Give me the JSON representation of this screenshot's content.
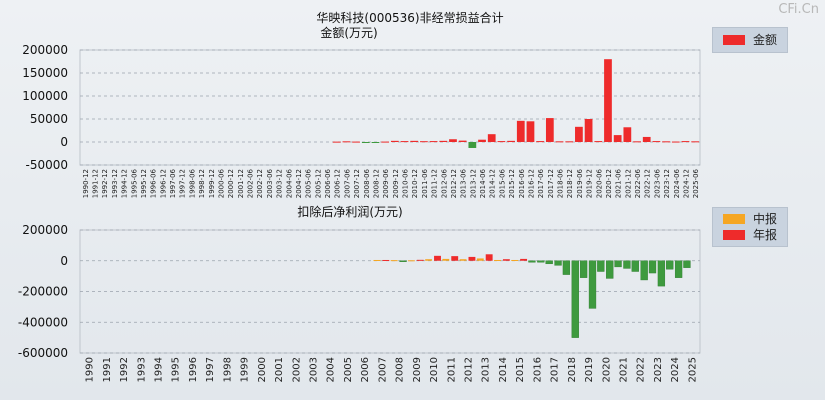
{
  "watermark": "CFi.Cn",
  "colors": {
    "red": "#ee2b2b",
    "green": "#3e9a3e",
    "orange": "#f5a623",
    "grid": "#9aa3ad"
  },
  "chart_data": [
    {
      "type": "bar",
      "title": "华映科技(000536)非经常损益合计",
      "subtitle": "金额(万元)",
      "legend": [
        {
          "name": "金额",
          "color": "#ee2b2b"
        }
      ],
      "ylim": [
        -50000,
        200000
      ],
      "yticks": [
        200000,
        150000,
        100000,
        50000,
        0,
        -50000
      ],
      "categories": [
        "1990-12",
        "1991-12",
        "1992-12",
        "1993-12",
        "1994-12",
        "1995-06",
        "1995-12",
        "1996-06",
        "1996-12",
        "1997-06",
        "1997-12",
        "1998-06",
        "1998-12",
        "1999-12",
        "2000-06",
        "2000-12",
        "2001-12",
        "2002-06",
        "2002-12",
        "2003-06",
        "2003-12",
        "2004-06",
        "2004-12",
        "2005-06",
        "2005-12",
        "2006-06",
        "2006-12",
        "2007-06",
        "2007-12",
        "2008-06",
        "2008-12",
        "2009-06",
        "2009-12",
        "2010-06",
        "2010-12",
        "2011-06",
        "2011-12",
        "2012-06",
        "2012-12",
        "2013-06",
        "2013-12",
        "2014-06",
        "2014-12",
        "2015-06",
        "2015-12",
        "2016-06",
        "2016-12",
        "2017-06",
        "2017-12",
        "2018-06",
        "2018-12",
        "2019-06",
        "2019-12",
        "2020-06",
        "2020-12",
        "2021-06",
        "2021-12",
        "2022-06",
        "2022-12",
        "2023-06",
        "2023-12",
        "2024-06",
        "2024-12",
        "2025-06"
      ],
      "values": [
        0,
        0,
        0,
        0,
        0,
        0,
        0,
        0,
        0,
        0,
        0,
        0,
        0,
        0,
        0,
        0,
        0,
        0,
        0,
        0,
        0,
        0,
        0,
        0,
        0,
        0,
        800,
        1500,
        900,
        -1500,
        -1200,
        900,
        2500,
        2000,
        2500,
        1800,
        2000,
        2500,
        6000,
        3000,
        -13000,
        5000,
        17000,
        2000,
        2500,
        46000,
        45000,
        2000,
        52000,
        1500,
        1500,
        33000,
        50000,
        2000,
        180000,
        15000,
        32000,
        1500,
        11000,
        2000,
        1500,
        1000,
        2000,
        1500
      ]
    },
    {
      "type": "bar",
      "title": "扣除后净利润(万元)",
      "legend": [
        {
          "name": "中报",
          "color": "#f5a623"
        },
        {
          "name": "年报",
          "color": "#ee2b2b"
        }
      ],
      "ylim": [
        -600000,
        200000
      ],
      "yticks": [
        200000,
        0,
        -200000,
        -400000,
        -600000
      ],
      "categories": [
        "1990",
        "1991",
        "1992",
        "1993",
        "1994",
        "1995",
        "1996",
        "1997",
        "1998",
        "1999",
        "2000",
        "2001",
        "2002",
        "2003",
        "2004",
        "2005",
        "2006",
        "2007",
        "2008",
        "2009",
        "2010",
        "2011",
        "2012",
        "2013",
        "2014",
        "2015",
        "2016",
        "2017",
        "2018",
        "2019",
        "2020",
        "2021",
        "2022",
        "2023",
        "2024",
        "2025"
      ],
      "series": [
        {
          "name": "中报",
          "values": [
            null,
            null,
            null,
            null,
            null,
            null,
            null,
            null,
            null,
            null,
            null,
            null,
            null,
            null,
            null,
            null,
            null,
            5000,
            4000,
            3000,
            10000,
            12000,
            10000,
            15000,
            5000,
            5000,
            -10000,
            -20000,
            -90000,
            -110000,
            -70000,
            -40000,
            -70000,
            -80000,
            -55000,
            -45000
          ]
        },
        {
          "name": "年报",
          "values": [
            null,
            null,
            null,
            null,
            null,
            null,
            null,
            null,
            null,
            null,
            null,
            null,
            null,
            null,
            null,
            null,
            null,
            5000,
            -6000,
            6000,
            32000,
            30000,
            25000,
            42000,
            10000,
            12000,
            -10000,
            -30000,
            -500000,
            -310000,
            -115000,
            -50000,
            -125000,
            -165000,
            -110000,
            null
          ]
        }
      ]
    }
  ]
}
